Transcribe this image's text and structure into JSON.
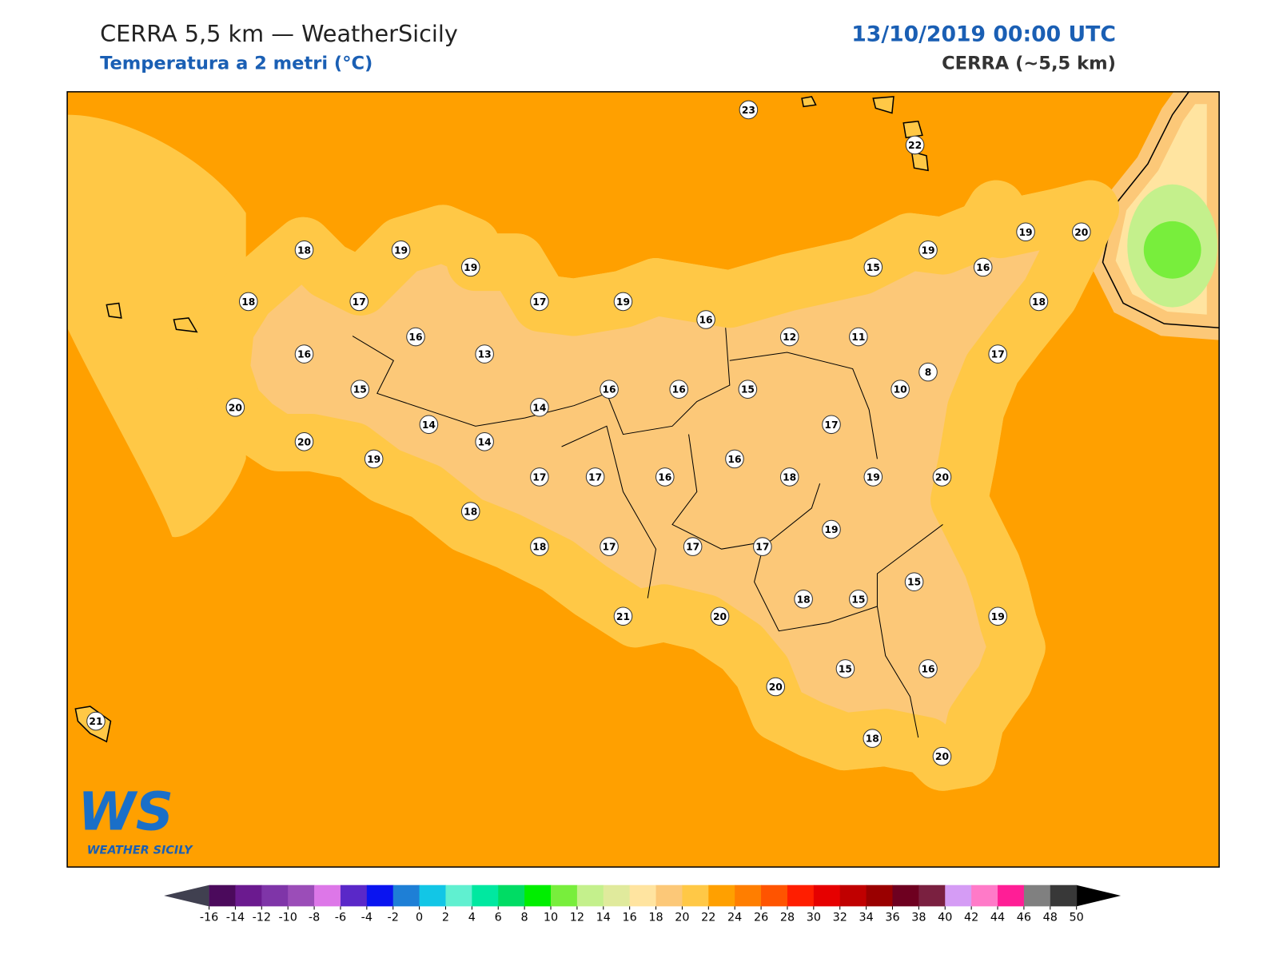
{
  "header": {
    "title": "CERRA 5,5 km — WeatherSicily",
    "subtitle": "Temperatura a 2 metri (°C)",
    "date": "13/10/2019 00:00 UTC",
    "source": "CERRA (~5,5 km)"
  },
  "stations": [
    23,
    22,
    18,
    19,
    19,
    19,
    20,
    19,
    15,
    16,
    18,
    17,
    17,
    19,
    18,
    16,
    16,
    12,
    11,
    16,
    13,
    17,
    8,
    15,
    16,
    16,
    15,
    10,
    20,
    14,
    14,
    17,
    14,
    20,
    19,
    17,
    17,
    16,
    16,
    18,
    19,
    20,
    18,
    19,
    18,
    17,
    17,
    17,
    15,
    18,
    15,
    21,
    20,
    19,
    15,
    16,
    20,
    18,
    20,
    21
  ],
  "logo": {
    "mark": "WS",
    "name": "WEATHER SICILY"
  },
  "colorbar": {
    "ticks": [
      -16,
      -14,
      -12,
      -10,
      -8,
      -6,
      -4,
      -2,
      0,
      2,
      4,
      6,
      8,
      10,
      12,
      14,
      16,
      18,
      20,
      22,
      24,
      26,
      28,
      30,
      32,
      34,
      36,
      38,
      40,
      42,
      44,
      46,
      48,
      50
    ],
    "colors": [
      "#4b0a5c",
      "#6b1a8f",
      "#7f35a8",
      "#9b4db8",
      "#dd77e8",
      "#5a28c8",
      "#0a14f0",
      "#1e7fd6",
      "#12c6e6",
      "#60f0d0",
      "#00e8a0",
      "#00dc64",
      "#00ee00",
      "#78ee3c",
      "#c4f08c",
      "#e0ea9c",
      "#ffe4a0",
      "#fcc878",
      "#ffc846",
      "#ffa000",
      "#ff7e00",
      "#ff5400",
      "#ff1e00",
      "#e60000",
      "#c00000",
      "#9a0000",
      "#6e0020",
      "#7a2040",
      "#d59cf5",
      "#ff7ac8",
      "#ff1e96",
      "#808080",
      "#383838"
    ],
    "under": "#404050",
    "over": "#000000"
  }
}
